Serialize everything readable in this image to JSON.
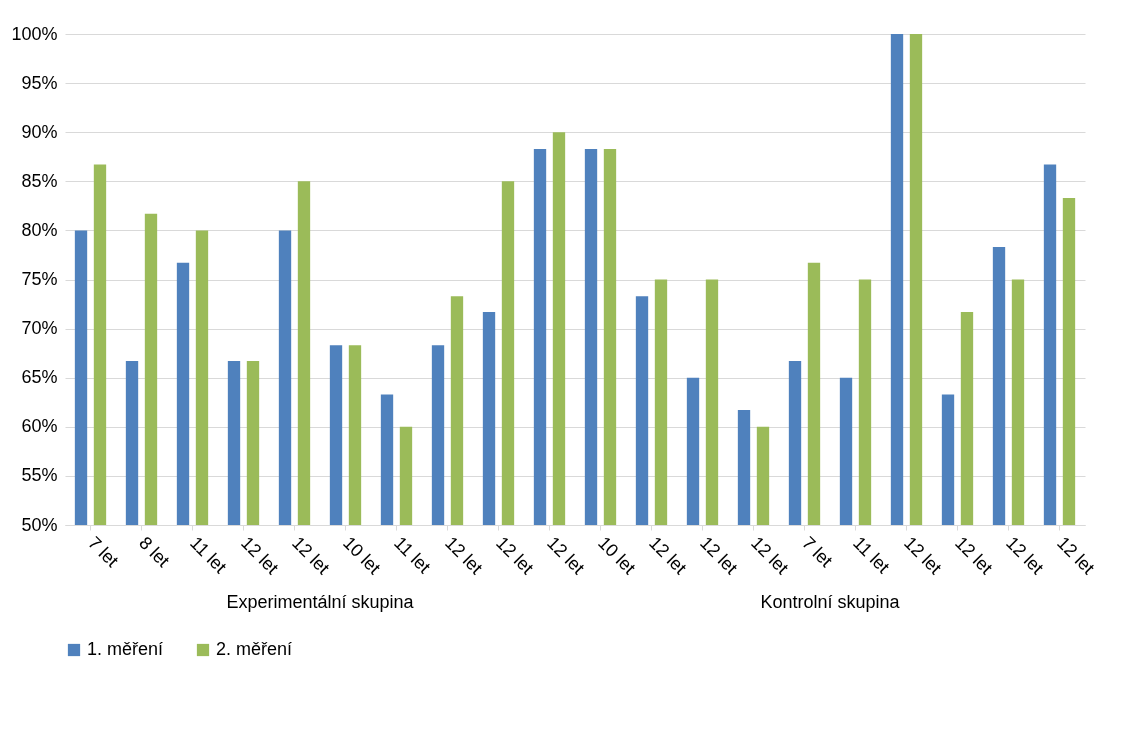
{
  "chart_data": {
    "type": "bar",
    "categories": [
      "7 let",
      "8 let",
      "11 let",
      "12 let",
      "12 let",
      "10 let",
      "11 let",
      "12 let",
      "12 let",
      "12 let",
      "10 let",
      "12 let",
      "12 let",
      "12 let",
      "7 let",
      "11 let",
      "12 let",
      "12 let",
      "12 let",
      "12 let"
    ],
    "series": [
      {
        "name": "1. měření",
        "color": "#4f81bd",
        "values": [
          80,
          66.7,
          76.7,
          66.7,
          80,
          68.3,
          63.3,
          68.3,
          71.7,
          88.3,
          88.3,
          73.3,
          65,
          61.7,
          66.7,
          65,
          100,
          63.3,
          78.3,
          86.7
        ]
      },
      {
        "name": "2. měření",
        "color": "#9bbb59",
        "values": [
          86.7,
          81.7,
          80,
          66.7,
          85,
          68.3,
          60,
          73.3,
          85,
          90,
          88.3,
          75,
          75,
          60,
          76.7,
          75,
          100,
          71.7,
          75,
          83.3
        ]
      }
    ],
    "annotations": [
      "Experimentální skupina",
      "Kontrolní skupina"
    ],
    "ylim": [
      50,
      100
    ],
    "yticks": [
      {
        "value": 50,
        "label": "50%"
      },
      {
        "value": 55,
        "label": "55%"
      },
      {
        "value": 60,
        "label": "60%"
      },
      {
        "value": 65,
        "label": "65%"
      },
      {
        "value": 70,
        "label": "70%"
      },
      {
        "value": 75,
        "label": "75%"
      },
      {
        "value": 80,
        "label": "80%"
      },
      {
        "value": 85,
        "label": "85%"
      },
      {
        "value": 90,
        "label": "90%"
      },
      {
        "value": 95,
        "label": "95%"
      },
      {
        "value": 100,
        "label": "100%"
      }
    ],
    "grid": "y",
    "legend": "bottom"
  }
}
